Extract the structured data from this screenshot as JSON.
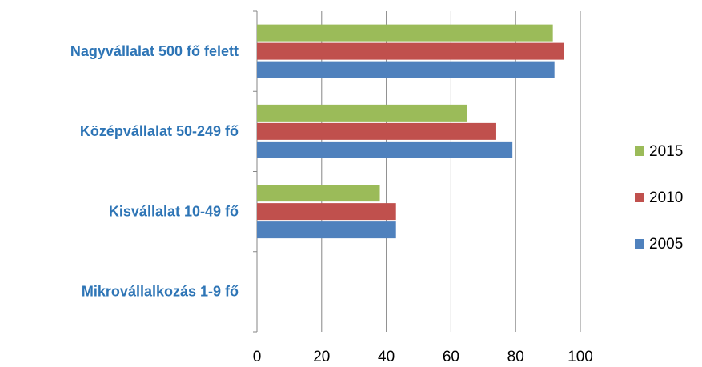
{
  "chart_data": {
    "type": "bar",
    "orientation": "horizontal",
    "categories": [
      "Nagyvállalat 500 fő felett",
      "Középvállalat 50-249 fő",
      "Kisvállalat 10-49 fő",
      "Mikrovállalkozás 1-9 fő"
    ],
    "series": [
      {
        "name": "2015",
        "color": "#9bbb59",
        "values": [
          91.5,
          65,
          38,
          null
        ]
      },
      {
        "name": "2010",
        "color": "#c0504d",
        "values": [
          95,
          74,
          43,
          null
        ]
      },
      {
        "name": "2005",
        "color": "#4f81bd",
        "values": [
          92,
          79,
          43,
          null
        ]
      }
    ],
    "xlim": [
      0,
      100
    ],
    "xticks": [
      0,
      20,
      40,
      60,
      80,
      100
    ],
    "grid": true,
    "legend": "right"
  }
}
